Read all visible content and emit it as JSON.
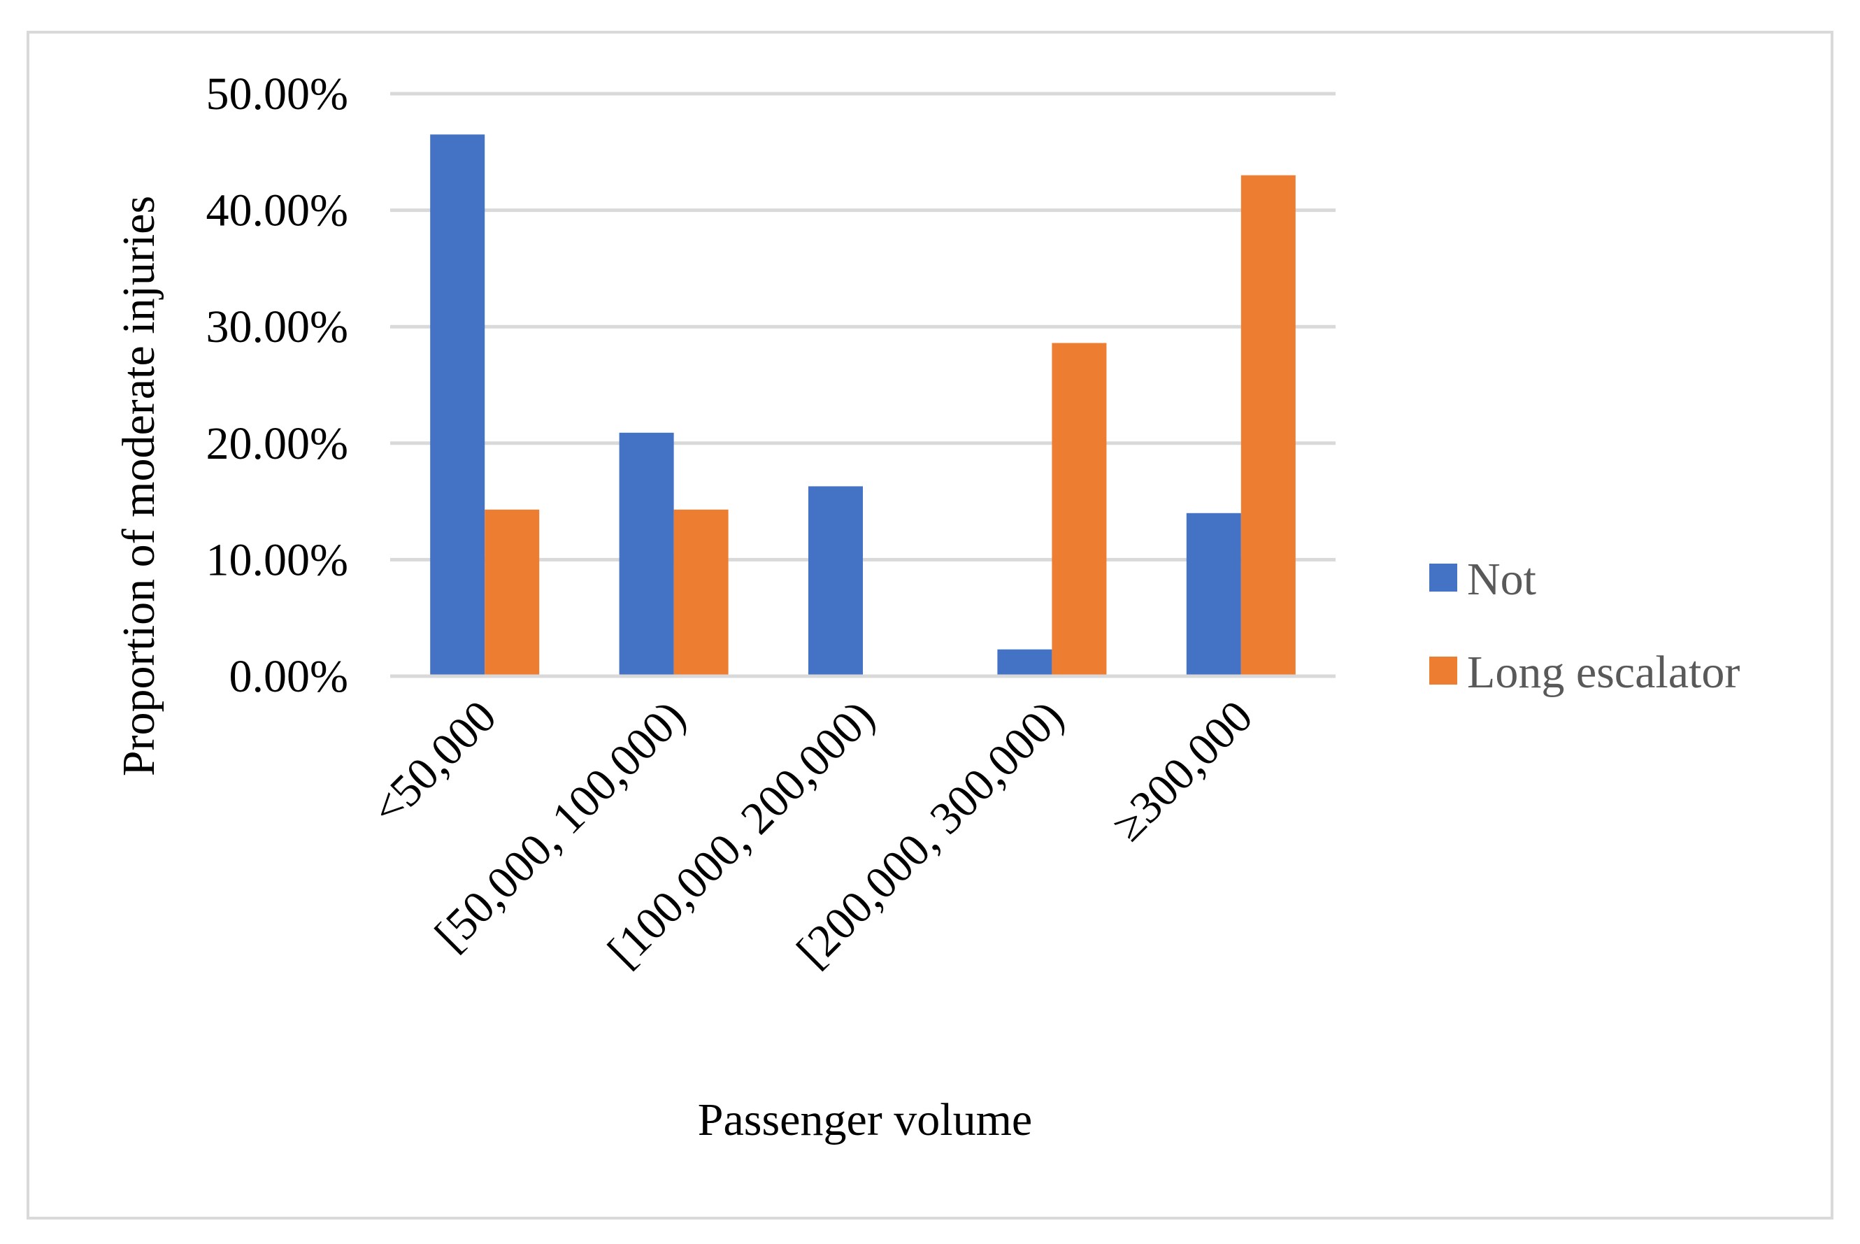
{
  "chart_data": {
    "type": "bar",
    "title": "",
    "xlabel": "Passenger volume",
    "ylabel": "Proportion of moderate injuries",
    "categories": [
      "<50,000",
      "[50,000, 100,000)",
      "[100,000, 200,000)",
      "[200,000, 300,000)",
      "≥300,000"
    ],
    "series": [
      {
        "name": "Not",
        "color": "#4472c4",
        "values": [
          46.5,
          20.9,
          16.3,
          2.3,
          14.0
        ]
      },
      {
        "name": "Long escalator",
        "color": "#ed7d31",
        "values": [
          14.3,
          14.3,
          0.0,
          28.6,
          43.0
        ]
      }
    ],
    "yticks": [
      "0.00%",
      "10.00%",
      "20.00%",
      "30.00%",
      "40.00%",
      "50.00%"
    ],
    "ylim": [
      0,
      50
    ],
    "grid": true,
    "legend_position": "right"
  }
}
